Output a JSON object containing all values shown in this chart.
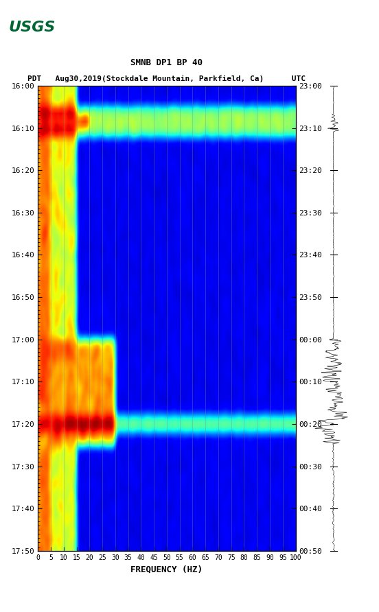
{
  "title_line1": "SMNB DP1 BP 40",
  "title_line2": "PDT   Aug30,2019(Stockdale Mountain, Parkfield, Ca)      UTC",
  "xlabel": "FREQUENCY (HZ)",
  "x_tick_labels": [
    "0",
    "5",
    "10",
    "15",
    "20",
    "25",
    "30",
    "35",
    "40",
    "45",
    "50",
    "55",
    "60",
    "65",
    "70",
    "75",
    "80",
    "85",
    "90",
    "95",
    "100"
  ],
  "x_tick_positions": [
    0,
    5,
    10,
    15,
    20,
    25,
    30,
    35,
    40,
    45,
    50,
    55,
    60,
    65,
    70,
    75,
    80,
    85,
    90,
    95,
    100
  ],
  "left_ytick_labels": [
    "16:00",
    "16:10",
    "16:20",
    "16:30",
    "16:40",
    "16:50",
    "17:00",
    "17:10",
    "17:20",
    "17:30",
    "17:40",
    "17:50"
  ],
  "right_ytick_labels": [
    "23:00",
    "23:10",
    "23:20",
    "23:30",
    "23:40",
    "23:50",
    "00:00",
    "00:10",
    "00:20",
    "00:30",
    "00:40",
    "00:50"
  ],
  "freq_min": 0,
  "freq_max": 100,
  "time_steps": 110,
  "freq_bins": 200,
  "bg_color": "white",
  "colormap": "jet",
  "grid_color": "#888888",
  "grid_alpha": 0.5,
  "seismogram_color": "black",
  "usgs_color": "#006633"
}
